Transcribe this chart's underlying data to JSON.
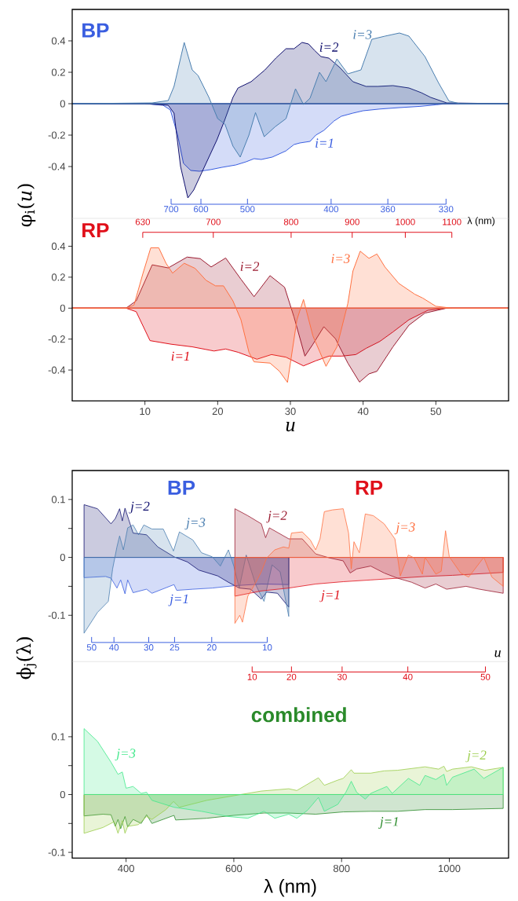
{
  "chart_data": [
    {
      "type": "area",
      "title": "BP",
      "ylabel": "φ$_{i}$(*u*)",
      "xlim": [
        0,
        60
      ],
      "ylim": [
        -0.73,
        0.6
      ],
      "yticks": [
        -0.4,
        -0.2,
        0,
        0.2,
        0.4
      ],
      "tick_labels": "y",
      "annotations": [
        "700",
        "600",
        "500",
        "400",
        "360",
        "330"
      ],
      "series": [
        {
          "name": "i=1",
          "color": "#3a5ee0",
          "x": [
            0,
            10,
            12.5,
            13.5,
            14.5,
            15.3,
            16.3,
            17.5,
            19,
            20.6,
            22.5,
            23.9,
            25,
            26,
            27.5,
            29.4,
            30.5,
            31.3,
            32.7,
            33.5,
            34.6,
            36,
            37,
            38.6,
            40,
            42.3,
            45,
            47.8,
            50,
            51.5,
            60
          ],
          "values": [
            0,
            0,
            -0.01,
            -0.04,
            -0.2,
            -0.38,
            -0.425,
            -0.43,
            -0.42,
            -0.405,
            -0.39,
            -0.37,
            -0.35,
            -0.355,
            -0.34,
            -0.3,
            -0.26,
            -0.25,
            -0.24,
            -0.2,
            -0.17,
            -0.11,
            -0.08,
            -0.06,
            -0.045,
            -0.034,
            -0.025,
            -0.017,
            -0.007,
            0,
            0
          ]
        },
        {
          "name": "i=2",
          "color": "#10106e",
          "x": [
            0,
            10,
            13.2,
            14,
            14.9,
            15.9,
            16.7,
            17.6,
            18.8,
            19.9,
            21,
            22.1,
            22.8,
            24.6,
            26.5,
            28,
            29.4,
            30.5,
            31.6,
            32.5,
            33.3,
            34.2,
            35.3,
            36.8,
            38.6,
            40.4,
            42,
            44.1,
            46.3,
            48,
            49.3,
            51.5,
            60
          ],
          "values": [
            0,
            0,
            -0.01,
            -0.06,
            -0.4,
            -0.6,
            -0.55,
            -0.46,
            -0.34,
            -0.23,
            -0.1,
            0.04,
            0.1,
            0.14,
            0.215,
            0.29,
            0.35,
            0.35,
            0.39,
            0.38,
            0.34,
            0.3,
            0.29,
            0.23,
            0.14,
            0.11,
            0.11,
            0.115,
            0.1,
            0.07,
            0.04,
            0.005,
            0
          ]
        },
        {
          "name": "i=3",
          "color": "#4a7eb0",
          "x": [
            0,
            11,
            13.2,
            14,
            15.4,
            16.5,
            17.3,
            18.8,
            20,
            21,
            22.1,
            23.1,
            24.3,
            25.2,
            26.4,
            27.9,
            29.4,
            30.7,
            31.8,
            32.7,
            34,
            34.9,
            36.4,
            37.9,
            39.7,
            41.2,
            43,
            45,
            46.3,
            48.5,
            50.4,
            51.8,
            53.3,
            60
          ],
          "values": [
            0,
            0.005,
            0.02,
            0.11,
            0.39,
            0.215,
            0.18,
            0.04,
            -0.095,
            -0.13,
            -0.27,
            -0.34,
            -0.2,
            -0.057,
            -0.21,
            -0.147,
            -0.095,
            0.095,
            -0.005,
            0.035,
            0.2,
            0.14,
            0.285,
            0.19,
            0.215,
            0.41,
            0.43,
            0.45,
            0.43,
            0.3,
            0.13,
            0.017,
            0,
            0
          ]
        }
      ]
    },
    {
      "type": "area",
      "title": "RP",
      "xlabel": "u",
      "xlim": [
        0,
        60
      ],
      "ylim": [
        -0.6,
        0.58
      ],
      "xticks": [
        10,
        20,
        30,
        40,
        50
      ],
      "yticks": [
        -0.4,
        -0.2,
        0,
        0.2,
        0.4
      ],
      "annotations": [
        "630",
        "700",
        "800",
        "900",
        "1000",
        "1100",
        "λ (nm)"
      ],
      "series": [
        {
          "name": "i=1",
          "color": "#e0101a",
          "x": [
            0,
            7.4,
            8.8,
            10.7,
            13.6,
            16.5,
            19.5,
            21.1,
            22.8,
            25.4,
            27.4,
            29.4,
            31.8,
            33.5,
            35.3,
            37.1,
            39,
            40.4,
            42.3,
            44.1,
            46.3,
            48.9,
            51.5,
            60
          ],
          "values": [
            0,
            0,
            -0.023,
            -0.21,
            -0.233,
            -0.25,
            -0.277,
            -0.264,
            -0.285,
            -0.33,
            -0.3,
            -0.317,
            -0.373,
            -0.34,
            -0.31,
            -0.31,
            -0.3,
            -0.26,
            -0.215,
            -0.154,
            -0.075,
            -0.014,
            0,
            0
          ]
        },
        {
          "name": "i=2",
          "color": "#9b1b30",
          "x": [
            0,
            7.4,
            8.8,
            11,
            13.2,
            15.8,
            17.6,
            19.1,
            21.1,
            23.2,
            25,
            27.2,
            29.2,
            30.5,
            32,
            33.1,
            34.6,
            36.2,
            37.9,
            39.5,
            40.8,
            41.9,
            44.1,
            46.3,
            48.5,
            51.5,
            60
          ],
          "values": [
            0,
            0,
            0.047,
            0.28,
            0.26,
            0.33,
            0.32,
            0.266,
            0.324,
            0.187,
            0.074,
            0.21,
            0.135,
            -0.058,
            -0.31,
            -0.233,
            -0.12,
            -0.198,
            -0.355,
            -0.478,
            -0.425,
            -0.408,
            -0.25,
            -0.11,
            -0.032,
            0,
            0
          ]
        },
        {
          "name": "i=3",
          "color": "#ff7040",
          "x": [
            0,
            7.4,
            8.5,
            9.7,
            10.8,
            11.9,
            12.9,
            13.8,
            15.4,
            16.9,
            18.4,
            19.7,
            20.8,
            22.1,
            23.2,
            24.3,
            25,
            27.2,
            28.5,
            29.6,
            30.9,
            31.8,
            33.1,
            34.9,
            36.4,
            37.9,
            38.6,
            39.6,
            40.8,
            41.9,
            43,
            44.9,
            47.1,
            48.2,
            50,
            52.2,
            60
          ],
          "values": [
            0,
            0,
            0.02,
            0.22,
            0.39,
            0.39,
            0.29,
            0.226,
            0.29,
            0.257,
            0.18,
            0.144,
            0.144,
            0.047,
            -0.075,
            -0.285,
            -0.347,
            -0.355,
            -0.408,
            -0.48,
            -0.075,
            0.056,
            -0.18,
            -0.376,
            -0.25,
            0.03,
            0.24,
            0.368,
            0.322,
            0.35,
            0.266,
            0.16,
            0.09,
            0.065,
            0.012,
            0,
            0
          ]
        }
      ]
    },
    {
      "type": "area",
      "ylabel": "ϕ$_{j}$(λ)",
      "xlim": [
        300,
        1110
      ],
      "ylim": [
        -0.18,
        0.15
      ],
      "yticks": [
        {
          "value": -0.1,
          "label": "-0.1"
        },
        {
          "value": -0.05,
          "label": null
        },
        0,
        {
          "value": 0.05,
          "label": null
        },
        {
          "value": 0.1,
          "label": "0.1"
        }
      ],
      "tick_labels": "y",
      "annotations": [
        "BP",
        "RP",
        "50",
        "40",
        "30",
        "25",
        "20",
        "10"
      ],
      "series": [
        {
          "name": "j=1",
          "color": "#3a5ee0",
          "x": [
            322,
            362,
            372,
            383,
            390,
            398,
            403,
            413,
            438,
            448,
            489,
            494,
            524,
            560,
            600,
            651,
            702
          ],
          "values": [
            -0.035,
            -0.033,
            -0.036,
            -0.053,
            -0.039,
            -0.063,
            -0.039,
            -0.061,
            -0.055,
            -0.062,
            -0.047,
            -0.057,
            -0.055,
            -0.053,
            -0.049,
            -0.046,
            -0.047
          ]
        },
        {
          "name": "j=2",
          "color": "#10106e",
          "x": [
            322,
            347,
            372,
            380,
            388,
            393,
            398,
            405,
            413,
            438,
            459,
            489,
            514,
            535,
            570,
            590,
            610,
            631,
            651,
            661,
            681,
            702
          ],
          "values": [
            0.091,
            0.084,
            0.058,
            0.067,
            0.084,
            0.063,
            0.085,
            0.065,
            0.042,
            0.039,
            0.018,
            0.001,
            -0.008,
            -0.022,
            -0.032,
            -0.043,
            -0.053,
            -0.055,
            -0.072,
            -0.06,
            -0.062,
            -0.086
          ]
        },
        {
          "name": "j=3",
          "color": "#4a7eb0",
          "x": [
            322,
            347,
            367,
            375,
            383,
            388,
            395,
            403,
            413,
            423,
            433,
            448,
            469,
            488,
            499,
            524,
            540,
            560,
            575,
            590,
            600,
            610,
            623,
            641,
            656,
            671,
            686,
            702
          ],
          "values": [
            -0.131,
            -0.095,
            -0.076,
            -0.02,
            0.018,
            0.037,
            0.013,
            0.051,
            0.056,
            0.039,
            0.056,
            0.049,
            0.049,
            0.011,
            0.044,
            0.03,
            0.008,
            0.001,
            -0.015,
            0.013,
            -0.015,
            -0.053,
            0.004,
            -0.048,
            -0.076,
            -0.013,
            -0.025,
            -0.102
          ]
        },
        {
          "name": "j=1",
          "color": "#e0101a",
          "x": [
            602,
            651,
            702,
            752,
            803,
            854,
            904,
            955,
            1006,
            1100
          ],
          "values": [
            -0.067,
            -0.058,
            -0.053,
            -0.046,
            -0.042,
            -0.039,
            -0.036,
            -0.033,
            -0.031,
            -0.026
          ]
        },
        {
          "name": "j=2",
          "color": "#9b1b30",
          "x": [
            602,
            626,
            651,
            659,
            666,
            702,
            727,
            752,
            778,
            803,
            816,
            828,
            854,
            879,
            904,
            930,
            955,
            975,
            995,
            1031,
            1056,
            1100
          ],
          "values": [
            0.084,
            0.072,
            0.058,
            0.034,
            0.051,
            0.032,
            0.032,
            0.006,
            -0.001,
            -0.006,
            -0.027,
            -0.02,
            -0.015,
            -0.027,
            -0.036,
            -0.043,
            -0.053,
            -0.046,
            -0.055,
            -0.05,
            -0.055,
            -0.062
          ]
        },
        {
          "name": "j=3",
          "color": "#ff7040",
          "x": [
            602,
            611,
            616,
            626,
            641,
            651,
            661,
            676,
            692,
            702,
            707,
            727,
            742,
            752,
            760,
            768,
            783,
            803,
            813,
            818,
            823,
            833,
            844,
            859,
            879,
            899,
            909,
            924,
            935,
            950,
            955,
            975,
            985,
            993,
            1000,
            1021,
            1036,
            1064,
            1079,
            1100
          ],
          "values": [
            -0.114,
            -0.1,
            -0.112,
            -0.067,
            -0.043,
            -0.025,
            -0.001,
            0.013,
            0.018,
            0.016,
            0.042,
            0.044,
            0.03,
            0.013,
            0.032,
            0.079,
            0.082,
            0.084,
            0.042,
            -0.02,
            0.027,
            0.008,
            0.075,
            0.072,
            0.058,
            0.032,
            -0.032,
            0.004,
            -0.001,
            -0.029,
            0,
            -0.029,
            -0.024,
            0.046,
            0.001,
            -0.027,
            -0.034,
            0,
            -0.034,
            -0.05
          ]
        }
      ]
    },
    {
      "type": "area",
      "title": "combined",
      "xlabel": "λ (nm)",
      "xlim": [
        300,
        1110
      ],
      "ylim": [
        -0.11,
        0.23
      ],
      "xticks": [
        400,
        600,
        800,
        1000
      ],
      "yticks": [
        {
          "value": -0.1,
          "label": "-0.1"
        },
        {
          "value": -0.05,
          "label": null
        },
        0,
        {
          "value": 0.05,
          "label": null
        },
        {
          "value": 0.1,
          "label": "0.1"
        }
      ],
      "annotations": [
        "10",
        "20",
        "30",
        "40",
        "50",
        "u"
      ],
      "series": [
        {
          "name": "j=1",
          "color": "#2a8a2a",
          "x": [
            322,
            357,
            372,
            380,
            385,
            390,
            398,
            403,
            413,
            428,
            438,
            448,
            489,
            492,
            550,
            600,
            656,
            702,
            752,
            803,
            854,
            904,
            955,
            1006,
            1100
          ],
          "values": [
            -0.037,
            -0.034,
            -0.035,
            -0.055,
            -0.043,
            -0.059,
            -0.038,
            -0.056,
            -0.043,
            -0.05,
            -0.035,
            -0.05,
            -0.036,
            -0.044,
            -0.041,
            -0.036,
            -0.032,
            -0.032,
            -0.034,
            -0.03,
            -0.029,
            -0.029,
            -0.026,
            -0.026,
            -0.024
          ]
        },
        {
          "name": "j=2",
          "color": "#9acd4a",
          "x": [
            322,
            357,
            378,
            385,
            393,
            398,
            403,
            423,
            438,
            448,
            474,
            488,
            499,
            550,
            600,
            651,
            702,
            717,
            737,
            757,
            768,
            793,
            803,
            818,
            823,
            854,
            879,
            904,
            955,
            980,
            990,
            995,
            1006,
            1041,
            1066,
            1100
          ],
          "values": [
            -0.067,
            -0.057,
            -0.047,
            -0.067,
            -0.045,
            -0.067,
            -0.055,
            -0.052,
            -0.038,
            -0.043,
            -0.026,
            -0.012,
            -0.022,
            -0.01,
            -0.002,
            0.006,
            0.01,
            0.007,
            0.018,
            0.029,
            0.016,
            0.025,
            0.028,
            0.043,
            0.037,
            0.037,
            0.041,
            0.042,
            0.048,
            0.044,
            0.049,
            0.04,
            0.044,
            0.048,
            0.042,
            0.047
          ]
        },
        {
          "name": "j=3",
          "color": "#40e88a",
          "x": [
            322,
            347,
            372,
            385,
            393,
            400,
            413,
            428,
            438,
            448,
            489,
            540,
            590,
            626,
            656,
            676,
            702,
            717,
            737,
            757,
            768,
            793,
            808,
            818,
            828,
            844,
            854,
            884,
            894,
            924,
            945,
            955,
            975,
            990,
            995,
            1006,
            1046,
            1064,
            1100
          ],
          "values": [
            0.114,
            0.092,
            0.056,
            0.035,
            0.039,
            0.011,
            0.014,
            0.002,
            0.004,
            -0.01,
            -0.022,
            -0.029,
            -0.038,
            -0.041,
            -0.029,
            -0.041,
            -0.034,
            -0.041,
            -0.027,
            -0.005,
            -0.029,
            -0.017,
            0.004,
            0.023,
            0.004,
            -0.008,
            0.002,
            0.014,
            0.002,
            0.028,
            0.016,
            0.033,
            0.026,
            0.035,
            0.016,
            0.03,
            0.044,
            0.028,
            0.047
          ]
        }
      ]
    }
  ]
}
